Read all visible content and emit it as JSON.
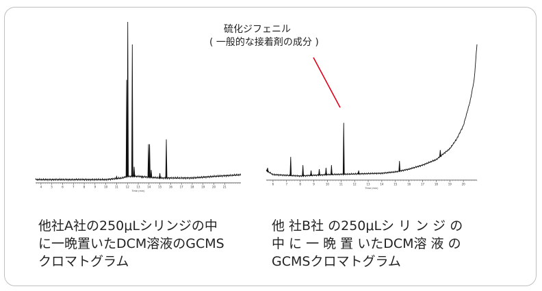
{
  "chart_data": [
    {
      "type": "line",
      "xlabel": "Time (min)",
      "xlim": [
        3.5,
        22.5
      ],
      "ylim": [
        0,
        100
      ],
      "x_ticks": [
        "4",
        "5",
        "6",
        "7",
        "8",
        "9",
        "10",
        "11",
        "12",
        "13",
        "14",
        "15",
        "16",
        "17",
        "18",
        "19",
        "20",
        "21"
      ],
      "baseline": [
        [
          3.5,
          2
        ],
        [
          10,
          2
        ],
        [
          11.5,
          3
        ],
        [
          12,
          4
        ],
        [
          13,
          4
        ],
        [
          15,
          3
        ],
        [
          18,
          3
        ],
        [
          20,
          4
        ],
        [
          22.5,
          5
        ]
      ],
      "peaks": [
        {
          "x": 11.0,
          "y": 4
        },
        {
          "x": 11.93,
          "y": 64
        },
        {
          "x": 12.03,
          "y": 100
        },
        {
          "x": 12.45,
          "y": 86
        },
        {
          "x": 12.62,
          "y": 10
        },
        {
          "x": 13.35,
          "y": 3
        },
        {
          "x": 13.95,
          "y": 24
        },
        {
          "x": 14.05,
          "y": 24
        },
        {
          "x": 14.2,
          "y": 8
        },
        {
          "x": 15.0,
          "y": 6
        },
        {
          "x": 15.6,
          "y": 27
        },
        {
          "x": 16.2,
          "y": 3
        }
      ],
      "caption": "他社A社の250μLシリンジの中\nに一晩置いたDCM溶液のGCMS\nクロマトグラム"
    },
    {
      "type": "line",
      "xlabel": "Time (min)",
      "xlim": [
        5.5,
        21
      ],
      "ylim": [
        0,
        100
      ],
      "x_ticks": [
        "6",
        "7",
        "8",
        "9",
        "10",
        "11",
        "12",
        "13",
        "14",
        "15",
        "16",
        "17",
        "18",
        "19",
        "20"
      ],
      "baseline": [
        [
          5.5,
          7
        ],
        [
          6,
          4
        ],
        [
          8,
          3
        ],
        [
          10,
          4
        ],
        [
          12,
          4.5
        ],
        [
          14,
          5
        ],
        [
          15,
          6
        ],
        [
          16,
          8
        ],
        [
          17,
          11
        ],
        [
          18,
          15
        ],
        [
          19,
          23
        ],
        [
          19.5,
          30
        ],
        [
          20,
          40
        ],
        [
          20.5,
          58
        ],
        [
          20.8,
          74
        ],
        [
          21,
          100
        ]
      ],
      "peaks": [
        {
          "x": 5.6,
          "y": 9
        },
        {
          "x": 7.3,
          "y": 17
        },
        {
          "x": 8.2,
          "y": 11
        },
        {
          "x": 8.8,
          "y": 7
        },
        {
          "x": 9.4,
          "y": 8
        },
        {
          "x": 9.9,
          "y": 9
        },
        {
          "x": 10.3,
          "y": 11
        },
        {
          "x": 11.2,
          "y": 42
        },
        {
          "x": 12.3,
          "y": 7
        },
        {
          "x": 15.3,
          "y": 14
        },
        {
          "x": 18.3,
          "y": 22
        },
        {
          "x": 18.6,
          "y": 20
        }
      ],
      "annotation": {
        "line1": "硫化ジフェニル",
        "line2": "( 一般的な接着剤の成分 )"
      },
      "caption": "他 社B社 の250μLシ リ ン ジ の\n中 に 一 晩 置 いたDCM溶 液 の\nGCMSクロマトグラム"
    }
  ],
  "colors": {
    "trace": "#111111",
    "annotation_line": "#e2001a",
    "border": "#bfbfbf"
  }
}
